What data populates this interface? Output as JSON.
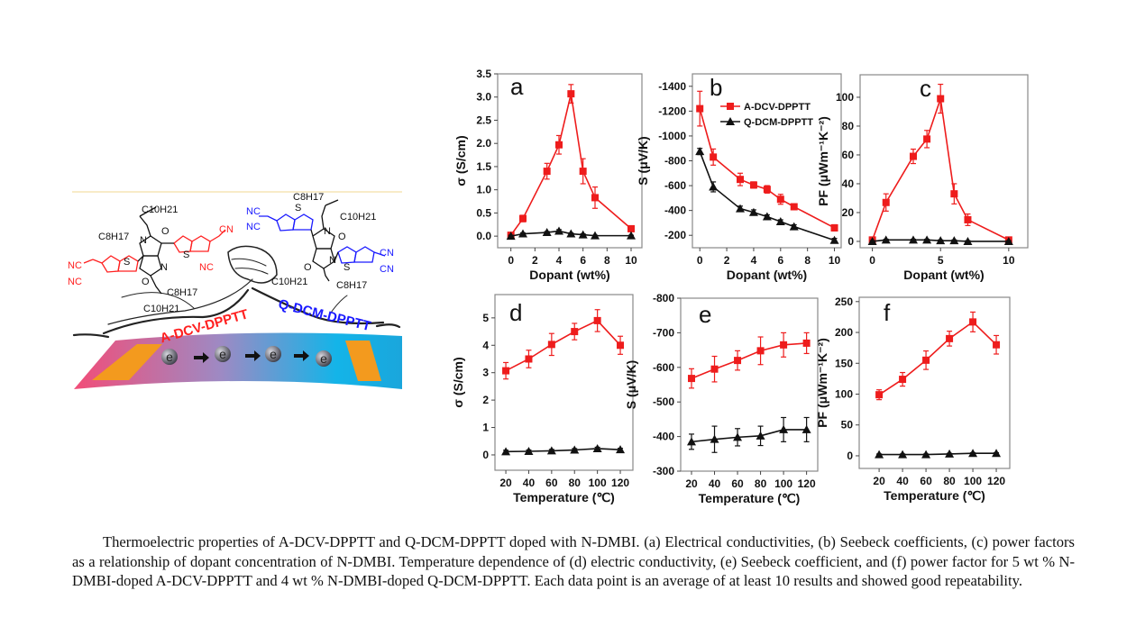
{
  "colors": {
    "series_a": "#ee1c1c",
    "series_b": "#111111",
    "label_red": "#ff2020",
    "label_blue": "#1a1aff",
    "band_left": "#f24d78",
    "band_mid": "#9d8ac4",
    "band_right": "#14b4e8",
    "electrode": "#f39a1e"
  },
  "legend": [
    "A-DCV-DPPTT",
    "Q-DCM-DPPTT"
  ],
  "diagram": {
    "left_label": "A-DCV-DPPTT",
    "right_label": "Q-DCM-DPPTT",
    "electron": "e",
    "chem": {
      "c8h17": "C8H17",
      "c10h21": "C10H21",
      "nc": "NC",
      "cn": "CN",
      "s": "S",
      "n": "N",
      "o": "O"
    }
  },
  "caption": "Thermoelectric properties of A-DCV-DPPTT and Q-DCM-DPPTT doped with N-DMBI. (a) Electrical conductivities, (b) Seebeck coefficients, (c) power factors as a relationship of dopant concentration of N-DMBI. Temperature dependence of (d) electric conductivity, (e) Seebeck coefficient, and (f) power factor for 5 wt % N-DMBI-doped A-DCV-DPPTT and 4 wt % N-DMBI-doped Q-DCM-DPPTT. Each data point is an average of at least 10 results and showed good repeatability.",
  "chart_data": [
    {
      "panel": "a",
      "type": "line",
      "xlabel": "Dopant (wt%)",
      "ylabel": "σ (S/cm)",
      "xlim": [
        -1.1,
        10.9
      ],
      "ylim": [
        -0.25,
        3.5
      ],
      "xticks": [
        0,
        2,
        4,
        6,
        8,
        10
      ],
      "yticks": [
        0.0,
        0.5,
        1.0,
        1.5,
        2.0,
        2.5,
        3.0,
        3.5
      ],
      "ytick_labels": [
        "0.0",
        "0.5",
        "1.0",
        "1.5",
        "2.0",
        "2.5",
        "3.0",
        "3.5"
      ],
      "x": [
        0,
        1,
        3,
        4,
        5,
        6,
        7,
        10
      ],
      "series": [
        {
          "name": "A-DCV-DPPTT",
          "marker": "square",
          "values": [
            0.02,
            0.38,
            1.4,
            1.97,
            3.07,
            1.4,
            0.83,
            0.16
          ],
          "errors": [
            0.03,
            0.07,
            0.17,
            0.2,
            0.2,
            0.27,
            0.23,
            0.06
          ]
        },
        {
          "name": "Q-DCM-DPPTT",
          "marker": "triangle",
          "values": [
            0.0,
            0.05,
            0.08,
            0.11,
            0.05,
            0.03,
            0.01,
            0.01
          ],
          "errors": [
            0.02,
            0.02,
            0.02,
            0.03,
            0.02,
            0.02,
            0.01,
            0.01
          ]
        }
      ]
    },
    {
      "panel": "b",
      "type": "line",
      "xlabel": "Dopant (wt%)",
      "ylabel": "S (μV/K)",
      "xlim": [
        -0.55,
        10.5
      ],
      "ylim": [
        -100,
        -1500
      ],
      "xticks": [
        0,
        2,
        4,
        6,
        8,
        10
      ],
      "yticks": [
        -200,
        -400,
        -600,
        -800,
        -1000,
        -1200,
        -1400
      ],
      "ytick_labels": [
        "-200",
        "-400",
        "-600",
        "-800",
        "-1000",
        "-1200",
        "-1400"
      ],
      "legend_position": "top-right",
      "x": [
        0,
        1,
        3,
        4,
        5,
        6,
        7,
        10
      ],
      "series": [
        {
          "name": "A-DCV-DPPTT",
          "marker": "square",
          "values": [
            -1220,
            -830,
            -650,
            -605,
            -570,
            -490,
            -430,
            -260
          ],
          "errors": [
            140,
            65,
            50,
            25,
            30,
            40,
            15,
            25
          ]
        },
        {
          "name": "Q-DCM-DPPTT",
          "marker": "triangle",
          "values": [
            -875,
            -590,
            -415,
            -385,
            -350,
            -310,
            -270,
            -160
          ],
          "errors": [
            25,
            40,
            20,
            20,
            15,
            15,
            15,
            15
          ]
        }
      ]
    },
    {
      "panel": "c",
      "type": "line",
      "xlabel": "Dopant (wt%)",
      "ylabel": "PF (μWm⁻¹K⁻²)",
      "xlim": [
        -0.9,
        11.4
      ],
      "ylim": [
        -4.4,
        115.6
      ],
      "xticks": [
        0,
        5,
        10
      ],
      "yticks": [
        0,
        20,
        40,
        60,
        80,
        100
      ],
      "ytick_labels": [
        "0",
        "20",
        "40",
        "60",
        "80",
        "100"
      ],
      "x": [
        0,
        1,
        3,
        4,
        5,
        6,
        7,
        10
      ],
      "series": [
        {
          "name": "A-DCV-DPPTT",
          "marker": "square",
          "values": [
            1,
            27,
            59,
            71,
            99,
            33,
            15,
            1
          ],
          "errors": [
            2,
            6,
            5,
            6,
            10,
            7,
            4,
            1
          ]
        },
        {
          "name": "Q-DCM-DPPTT",
          "marker": "triangle",
          "values": [
            0,
            1,
            1,
            1,
            0.5,
            0.5,
            0,
            0
          ],
          "errors": [
            0.5,
            0.5,
            0.5,
            0.5,
            0.5,
            0.5,
            0.5,
            0.5
          ]
        }
      ]
    },
    {
      "panel": "d",
      "type": "line",
      "xlabel": "Temperature (℃)",
      "ylabel": "σ (S/cm)",
      "xlim": [
        10.5,
        131
      ],
      "ylim": [
        -0.56,
        5.85
      ],
      "xticks": [
        20,
        40,
        60,
        80,
        100,
        120
      ],
      "yticks": [
        0,
        1,
        2,
        3,
        4,
        5
      ],
      "ytick_labels": [
        "0",
        "1",
        "2",
        "3",
        "4",
        "5"
      ],
      "x": [
        20,
        40,
        60,
        80,
        100,
        120
      ],
      "series": [
        {
          "name": "A-DCV-DPPTT",
          "marker": "square",
          "values": [
            3.07,
            3.5,
            4.03,
            4.5,
            4.9,
            4.0
          ],
          "errors": [
            0.3,
            0.32,
            0.4,
            0.3,
            0.4,
            0.33
          ]
        },
        {
          "name": "Q-DCM-DPPTT",
          "marker": "triangle",
          "values": [
            0.12,
            0.13,
            0.15,
            0.18,
            0.23,
            0.19
          ],
          "errors": [
            0.05,
            0.05,
            0.05,
            0.05,
            0.05,
            0.05
          ]
        }
      ]
    },
    {
      "panel": "e",
      "type": "line",
      "xlabel": "Temperature (℃)",
      "ylabel": "S (μV/K)",
      "xlim": [
        10.6,
        129.7
      ],
      "ylim": [
        -300,
        -800
      ],
      "xticks": [
        20,
        40,
        60,
        80,
        100,
        120
      ],
      "yticks": [
        -300,
        -400,
        -500,
        -600,
        -700,
        -800
      ],
      "ytick_labels": [
        "-300",
        "-400",
        "-500",
        "-600",
        "-700",
        "-800"
      ],
      "x": [
        20,
        40,
        60,
        80,
        100,
        120
      ],
      "series": [
        {
          "name": "A-DCV-DPPTT",
          "marker": "square",
          "values": [
            -568,
            -595,
            -620,
            -648,
            -665,
            -670
          ],
          "errors": [
            28,
            37,
            28,
            40,
            35,
            30
          ]
        },
        {
          "name": "Q-DCM-DPPTT",
          "marker": "triangle",
          "values": [
            -385,
            -392,
            -398,
            -402,
            -420,
            -420
          ],
          "errors": [
            22,
            38,
            25,
            28,
            35,
            35
          ]
        }
      ]
    },
    {
      "panel": "f",
      "type": "line",
      "xlabel": "Temperature (℃)",
      "ylabel": "PF (μWm⁻¹K⁻²)",
      "xlim": [
        3,
        131.5
      ],
      "ylim": [
        -20.5,
        257
      ],
      "xticks": [
        20,
        40,
        60,
        80,
        100,
        120
      ],
      "yticks": [
        0,
        50,
        100,
        150,
        200,
        250
      ],
      "ytick_labels": [
        "0",
        "50",
        "100",
        "150",
        "200",
        "250"
      ],
      "x": [
        20,
        40,
        60,
        80,
        100,
        120
      ],
      "series": [
        {
          "name": "A-DCV-DPPTT",
          "marker": "square",
          "values": [
            99,
            124,
            155,
            190,
            217,
            180
          ],
          "errors": [
            8,
            11,
            15,
            12,
            16,
            15
          ]
        },
        {
          "name": "Q-DCM-DPPTT",
          "marker": "triangle",
          "values": [
            2,
            2,
            2,
            3,
            4,
            4
          ],
          "errors": [
            1,
            1,
            1,
            1,
            1,
            1
          ]
        }
      ]
    }
  ]
}
